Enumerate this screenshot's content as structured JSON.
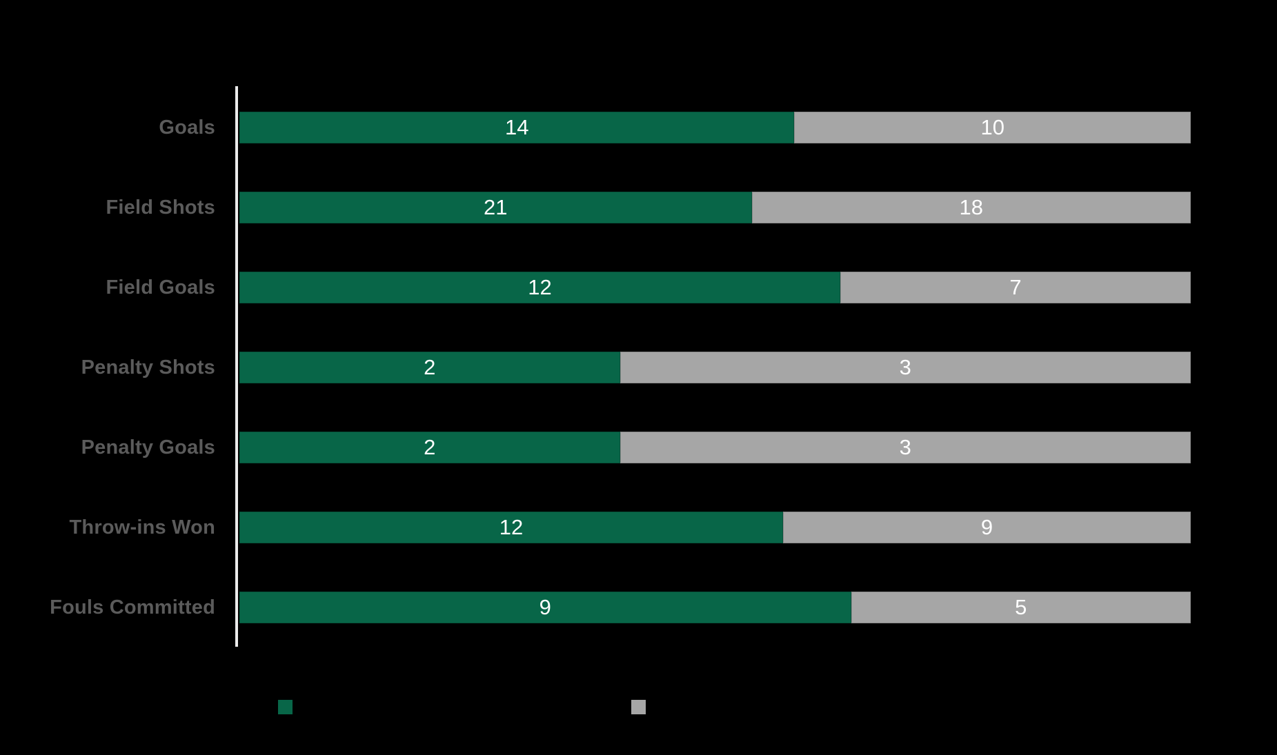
{
  "page": {
    "background": "#000000"
  },
  "colors": {
    "series_green": "#086648",
    "series_gray": "#a6a6a6",
    "value_text": "#ffffff",
    "category_label": "#5b5b5b",
    "axis_line": "#ececec"
  },
  "chart_data": {
    "type": "bar",
    "variant": "horizontal-100-percent-stacked",
    "categories": [
      "Goals",
      "Field Shots",
      "Field Goals",
      "Penalty Shots",
      "Penalty Goals",
      "Throw-ins Won",
      "Fouls Committed"
    ],
    "series": [
      {
        "name": "series-green",
        "color": "#086648",
        "values": [
          14,
          21,
          12,
          2,
          2,
          12,
          9
        ]
      },
      {
        "name": "series-gray",
        "color": "#a6a6a6",
        "values": [
          10,
          18,
          7,
          3,
          3,
          9,
          5
        ]
      }
    ],
    "value_labels": "inside-center",
    "legend_position": "bottom",
    "grid": false,
    "axis": {
      "y_axis_line": true,
      "x_axis_ticks": false
    }
  },
  "legend": {
    "items": [
      {
        "name": "series-green",
        "color": "#086648"
      },
      {
        "name": "series-gray",
        "color": "#a6a6a6"
      }
    ]
  }
}
